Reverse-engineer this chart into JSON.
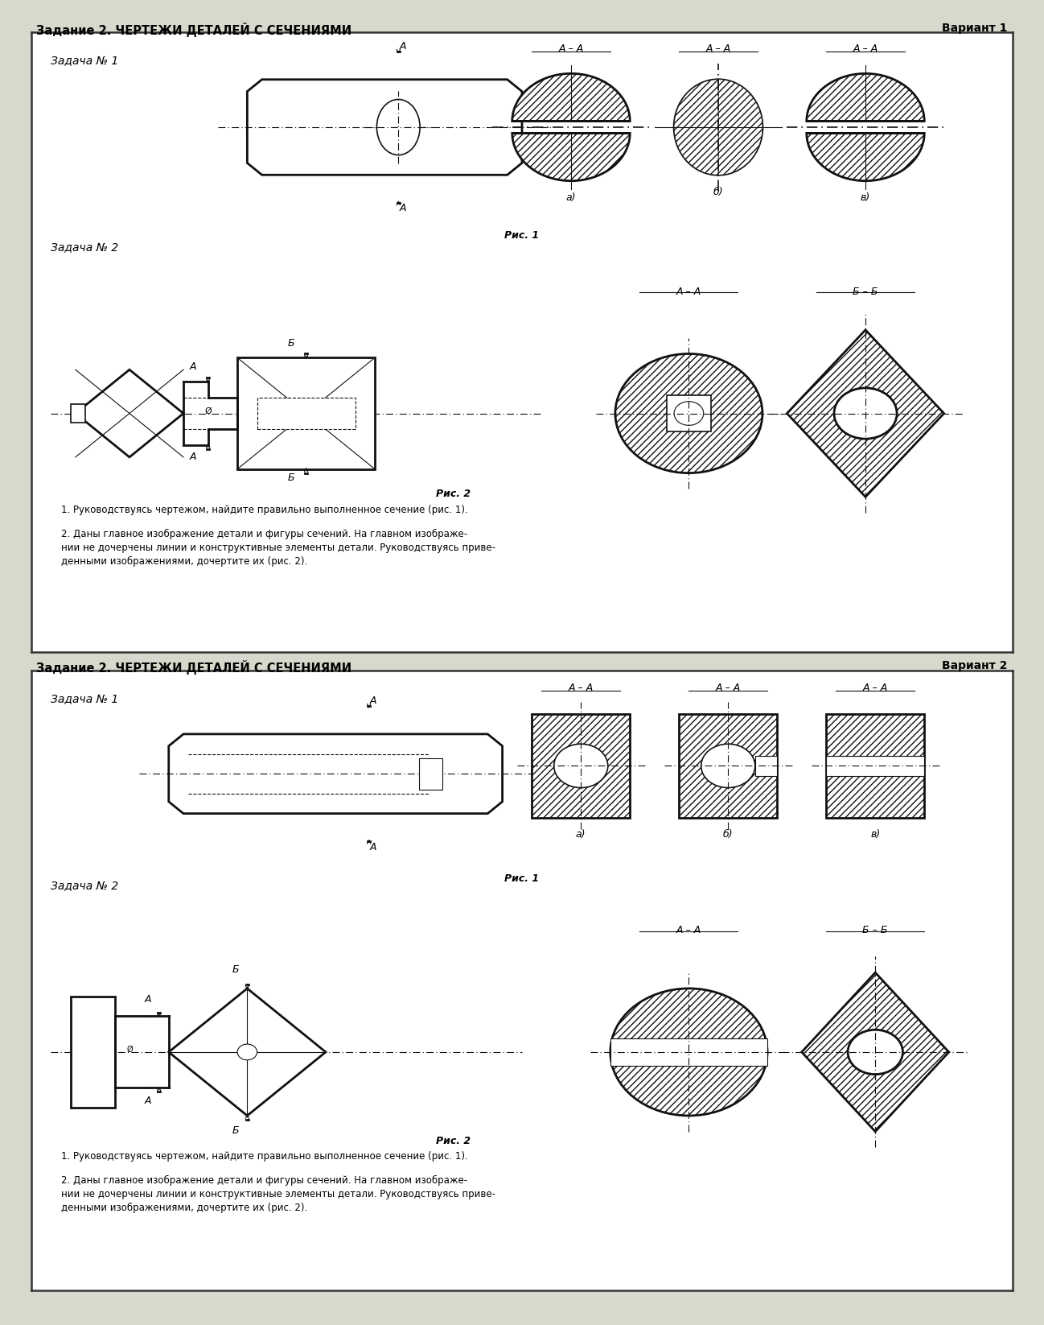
{
  "title1": "Задание 2. ЧЕРТЕЖИ ДЕТАЛЕЙ С СЕЧЕНИЯМИ",
  "variant1": "Вариант 1",
  "title2": "Задание 2. ЧЕРТЕЖИ ДЕТАЛЕЙ С СЕЧЕНИЯМИ",
  "variant2": "Вариант 2",
  "zadacha1": "Задача № 1",
  "zadacha2": "Задача № 2",
  "ris1": "Рис. 1",
  "ris2": "Рис. 2",
  "label_a": "а)",
  "label_b": "б)",
  "label_v": "в)",
  "section_aa": "А – А",
  "section_bb": "Б – Б",
  "text_block1": "1. Руководствуясь чертежом, найдите правильно выполненное сечение (рис. 1).",
  "text_block2": "2. Даны главное изображение детали и фигуры сечений. На главном изображе-\nнии не дочерчены линии и конструктивные элементы детали. Руководствуясь приве-\nденными изображениями, дочертите их (рис. 2).",
  "page_bg": "#d8d8cc",
  "panel_bg": "#ffffff",
  "lc": "#111111"
}
